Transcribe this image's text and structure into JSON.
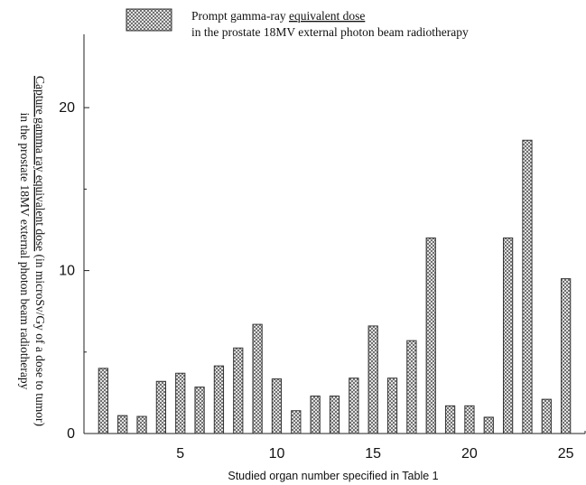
{
  "chart_data": {
    "type": "bar",
    "legend": {
      "line1_prefix": "Prompt gamma-ray ",
      "line1_underlined": "equivalent dose",
      "line2": "in the prostate 18MV external photon beam radiotherapy",
      "placement": "top-center"
    },
    "ylabel": {
      "line1_underlined": "Capture gamma ray equivalent dose",
      "line1_rest": " (in microSv/Gy of a dose to tumor)",
      "line2": "in the prostate 18MV external photon beam radiotherapy"
    },
    "xlabel": "Studied organ number specified in Table 1",
    "xlim": [
      0,
      26
    ],
    "ylim": [
      0,
      24.5
    ],
    "x_ticks": [
      5,
      10,
      15,
      20,
      25
    ],
    "y_ticks": [
      0,
      10,
      20
    ],
    "grid": false,
    "bar_pattern": "crosshatch",
    "bar_color": "#555555",
    "categories": [
      1,
      2,
      3,
      4,
      5,
      6,
      7,
      8,
      9,
      10,
      11,
      12,
      13,
      14,
      15,
      16,
      17,
      18,
      19,
      20,
      21,
      22,
      23,
      24,
      25
    ],
    "values": [
      4.0,
      1.1,
      1.05,
      3.2,
      3.7,
      2.85,
      4.15,
      5.25,
      6.7,
      3.35,
      1.4,
      2.3,
      2.3,
      3.4,
      6.6,
      3.4,
      5.7,
      12.0,
      1.7,
      1.7,
      1.0,
      12.0,
      18.0,
      2.1,
      9.5
    ]
  }
}
